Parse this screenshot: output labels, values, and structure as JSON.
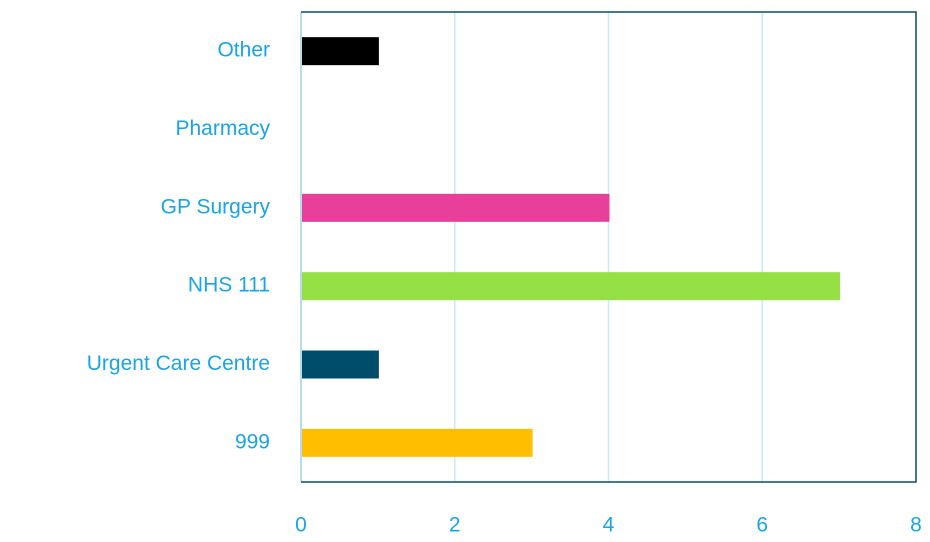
{
  "chart_data": {
    "type": "hbar",
    "categories": [
      "Other",
      "Pharmacy",
      "GP Surgery",
      "NHS 111",
      "Urgent Care Centre",
      "999"
    ],
    "values": [
      1,
      0,
      4,
      7,
      1,
      3
    ],
    "colors": [
      "#000000",
      null,
      "#e8409a",
      "#95e045",
      "#004c6b",
      "#ffbf00"
    ],
    "xlim": [
      0,
      8
    ],
    "xticks": [
      0,
      2,
      4,
      6,
      8
    ],
    "grid": true
  }
}
